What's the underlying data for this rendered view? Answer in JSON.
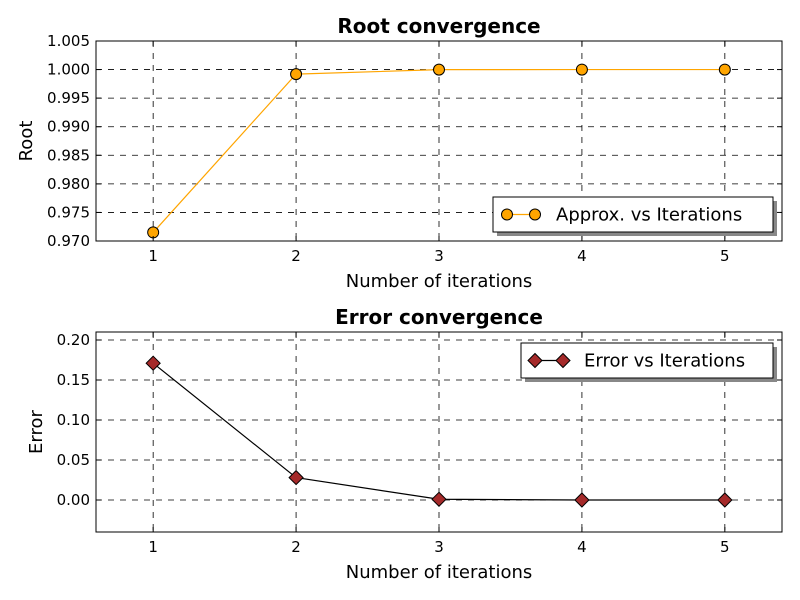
{
  "chart_data": [
    {
      "type": "line",
      "title": "Root convergence",
      "xlabel": "Number of iterations",
      "ylabel": "Root",
      "x": [
        1,
        2,
        3,
        4,
        5
      ],
      "xlim": [
        0.6,
        5.4
      ],
      "ylim": [
        0.97,
        1.005
      ],
      "xticks": [
        "1",
        "2",
        "3",
        "4",
        "5"
      ],
      "yticks": [
        "0.970",
        "0.975",
        "0.980",
        "0.985",
        "0.990",
        "0.995",
        "1.000",
        "1.005"
      ],
      "ytick_values": [
        0.97,
        0.975,
        0.98,
        0.985,
        0.99,
        0.995,
        1.0,
        1.005
      ],
      "grid": true,
      "legend": "lower-right",
      "series": [
        {
          "name": "Approx. vs Iterations",
          "values": [
            0.9715,
            0.9992,
            0.99999,
            1.0,
            1.0
          ],
          "color": "#FFA500",
          "marker": "circle"
        }
      ]
    },
    {
      "type": "line",
      "title": "Error convergence",
      "xlabel": "Number of iterations",
      "ylabel": "Error",
      "x": [
        1,
        2,
        3,
        4,
        5
      ],
      "xlim": [
        0.6,
        5.4
      ],
      "ylim": [
        -0.04,
        0.21
      ],
      "xticks": [
        "1",
        "2",
        "3",
        "4",
        "5"
      ],
      "yticks": [
        "0.00",
        "0.05",
        "0.10",
        "0.15",
        "0.20"
      ],
      "ytick_values": [
        0.0,
        0.05,
        0.1,
        0.15,
        0.2
      ],
      "grid": true,
      "legend": "top-right",
      "series": [
        {
          "name": "Error vs Iterations",
          "values": [
            0.171,
            0.028,
            0.0009,
            0.0,
            0.0
          ],
          "color": "#A52A2A",
          "line_color": "#000000",
          "marker": "diamond"
        }
      ]
    }
  ]
}
